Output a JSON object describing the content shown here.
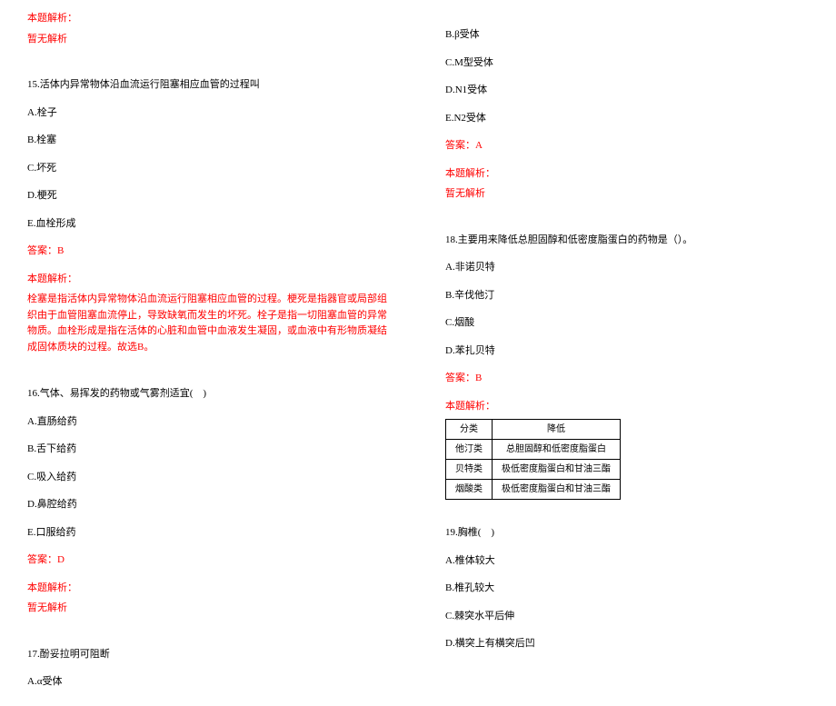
{
  "left": {
    "analysis_header": "本题解析：",
    "no_analysis": "暂无解析",
    "q15": {
      "stem": "15.活体内异常物体沿血流运行阻塞相应血管的过程叫",
      "A": "A.栓子",
      "B": "B.栓塞",
      "C": "C.坏死",
      "D": "D.梗死",
      "E": "E.血栓形成",
      "answer": "答案：B",
      "analysis_header": "本题解析：",
      "analysis_body": "栓塞是指活体内异常物体沿血流运行阻塞相应血管的过程。梗死是指器官或局部组织由于血管阻塞血流停止，导致缺氧而发生的坏死。栓子是指一切阻塞血管的异常物质。血栓形成是指在活体的心脏和血管中血液发生凝固，或血液中有形物质凝结成固体质块的过程。故选B。"
    },
    "q16": {
      "stem": "16.气体、易挥发的药物或气雾剂适宜(　)",
      "A": "A.直肠给药",
      "B": "B.舌下给药",
      "C": "C.吸入给药",
      "D": "D.鼻腔给药",
      "E": "E.口服给药",
      "answer": "答案：D",
      "analysis_header": "本题解析：",
      "no_analysis": "暂无解析"
    },
    "q17": {
      "stem": "17.酚妥拉明可阻断",
      "A": "A.α受体"
    }
  },
  "right": {
    "q17_cont": {
      "B": "B.β受体",
      "C": "C.M型受体",
      "D": "D.N1受体",
      "E": "E.N2受体",
      "answer": "答案：A",
      "analysis_header": "本题解析：",
      "no_analysis": "暂无解析"
    },
    "q18": {
      "stem": "18.主要用来降低总胆固醇和低密度脂蛋白的药物是（）。",
      "A": "A.非诺贝特",
      "B": "B.辛伐他汀",
      "C": "C.烟酸",
      "D": "D.苯扎贝特",
      "answer": "答案：B",
      "analysis_header": "本题解析：",
      "table": {
        "h1": "分类",
        "h2": "降低",
        "r1c1": "他汀类",
        "r1c2": "总胆固醇和低密度脂蛋白",
        "r2c1": "贝特类",
        "r2c2": "极低密度脂蛋白和甘油三酯",
        "r3c1": "烟酸类",
        "r3c2": "极低密度脂蛋白和甘油三酯"
      }
    },
    "q19": {
      "stem": "19.胸椎(　)",
      "A": "A.椎体较大",
      "B": "B.椎孔较大",
      "C": "C.棘突水平后伸",
      "D": "D.横突上有横突后凹"
    }
  }
}
